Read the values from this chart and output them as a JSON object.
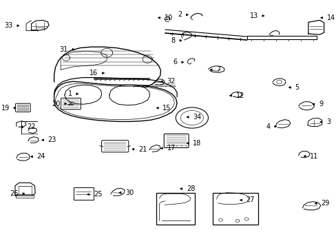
{
  "background_color": "#ffffff",
  "line_color": "#000000",
  "fig_width": 4.89,
  "fig_height": 3.6,
  "dpi": 100,
  "label_fontsize": 7.0,
  "label_positions": {
    "1": [
      0.23,
      0.622,
      "right"
    ],
    "2": [
      0.568,
      0.942,
      "right"
    ],
    "3": [
      0.958,
      0.508,
      "left"
    ],
    "4": [
      0.84,
      0.49,
      "right"
    ],
    "5": [
      0.862,
      0.648,
      "left"
    ],
    "6": [
      0.554,
      0.75,
      "right"
    ],
    "7": [
      0.62,
      0.72,
      "left"
    ],
    "8": [
      0.548,
      0.838,
      "right"
    ],
    "9": [
      0.935,
      0.58,
      "left"
    ],
    "10": [
      0.46,
      0.93,
      "left"
    ],
    "11": [
      0.908,
      0.37,
      "left"
    ],
    "12": [
      0.68,
      0.615,
      "left"
    ],
    "13": [
      0.802,
      0.938,
      "right"
    ],
    "14": [
      0.96,
      0.93,
      "left"
    ],
    "15": [
      0.455,
      0.565,
      "left"
    ],
    "16": [
      0.31,
      0.706,
      "right"
    ],
    "17": [
      0.468,
      0.402,
      "left"
    ],
    "18": [
      0.548,
      0.422,
      "left"
    ],
    "19": [
      0.038,
      0.565,
      "right"
    ],
    "20": [
      0.194,
      0.582,
      "right"
    ],
    "21": [
      0.38,
      0.398,
      "left"
    ],
    "22": [
      0.038,
      0.488,
      "left"
    ],
    "23": [
      0.102,
      0.435,
      "left"
    ],
    "24": [
      0.068,
      0.368,
      "left"
    ],
    "25": [
      0.242,
      0.215,
      "left"
    ],
    "26": [
      0.065,
      0.218,
      "right"
    ],
    "27": [
      0.712,
      0.192,
      "left"
    ],
    "28": [
      0.528,
      0.238,
      "left"
    ],
    "29": [
      0.942,
      0.178,
      "left"
    ],
    "30": [
      0.34,
      0.222,
      "left"
    ],
    "31": [
      0.218,
      0.802,
      "right"
    ],
    "32": [
      0.468,
      0.672,
      "left"
    ],
    "33": [
      0.048,
      0.898,
      "right"
    ],
    "34": [
      0.548,
      0.528,
      "left"
    ]
  }
}
